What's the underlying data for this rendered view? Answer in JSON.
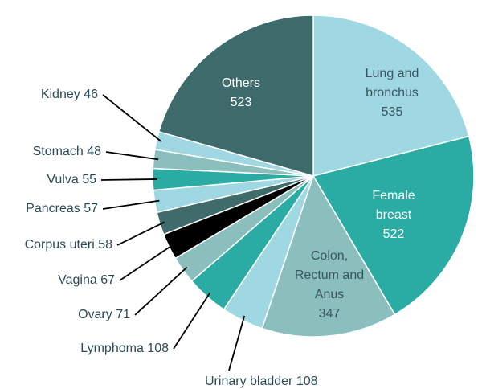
{
  "chart_data": {
    "type": "pie",
    "categories": [
      "Lung and bronchus",
      "Female breast",
      "Colon, Rectum and Anus",
      "Urinary bladder",
      "Lymphoma",
      "Ovary",
      "Vagina",
      "Corpus uteri",
      "Pancreas",
      "Vulva",
      "Stomach",
      "Kidney",
      "Others"
    ],
    "values": [
      535,
      522,
      347,
      108,
      108,
      71,
      67,
      58,
      57,
      55,
      48,
      46,
      523
    ],
    "colors": [
      "#9fd8e2",
      "#2aaba3",
      "#8bbfbd",
      "#9fd8e2",
      "#2aaba3",
      "#8bbfbd",
      "#000000",
      "#3f6b6b",
      "#9fd8e2",
      "#2aaba3",
      "#8bbfbd",
      "#9fd8e2",
      "#3d6b6b"
    ]
  }
}
